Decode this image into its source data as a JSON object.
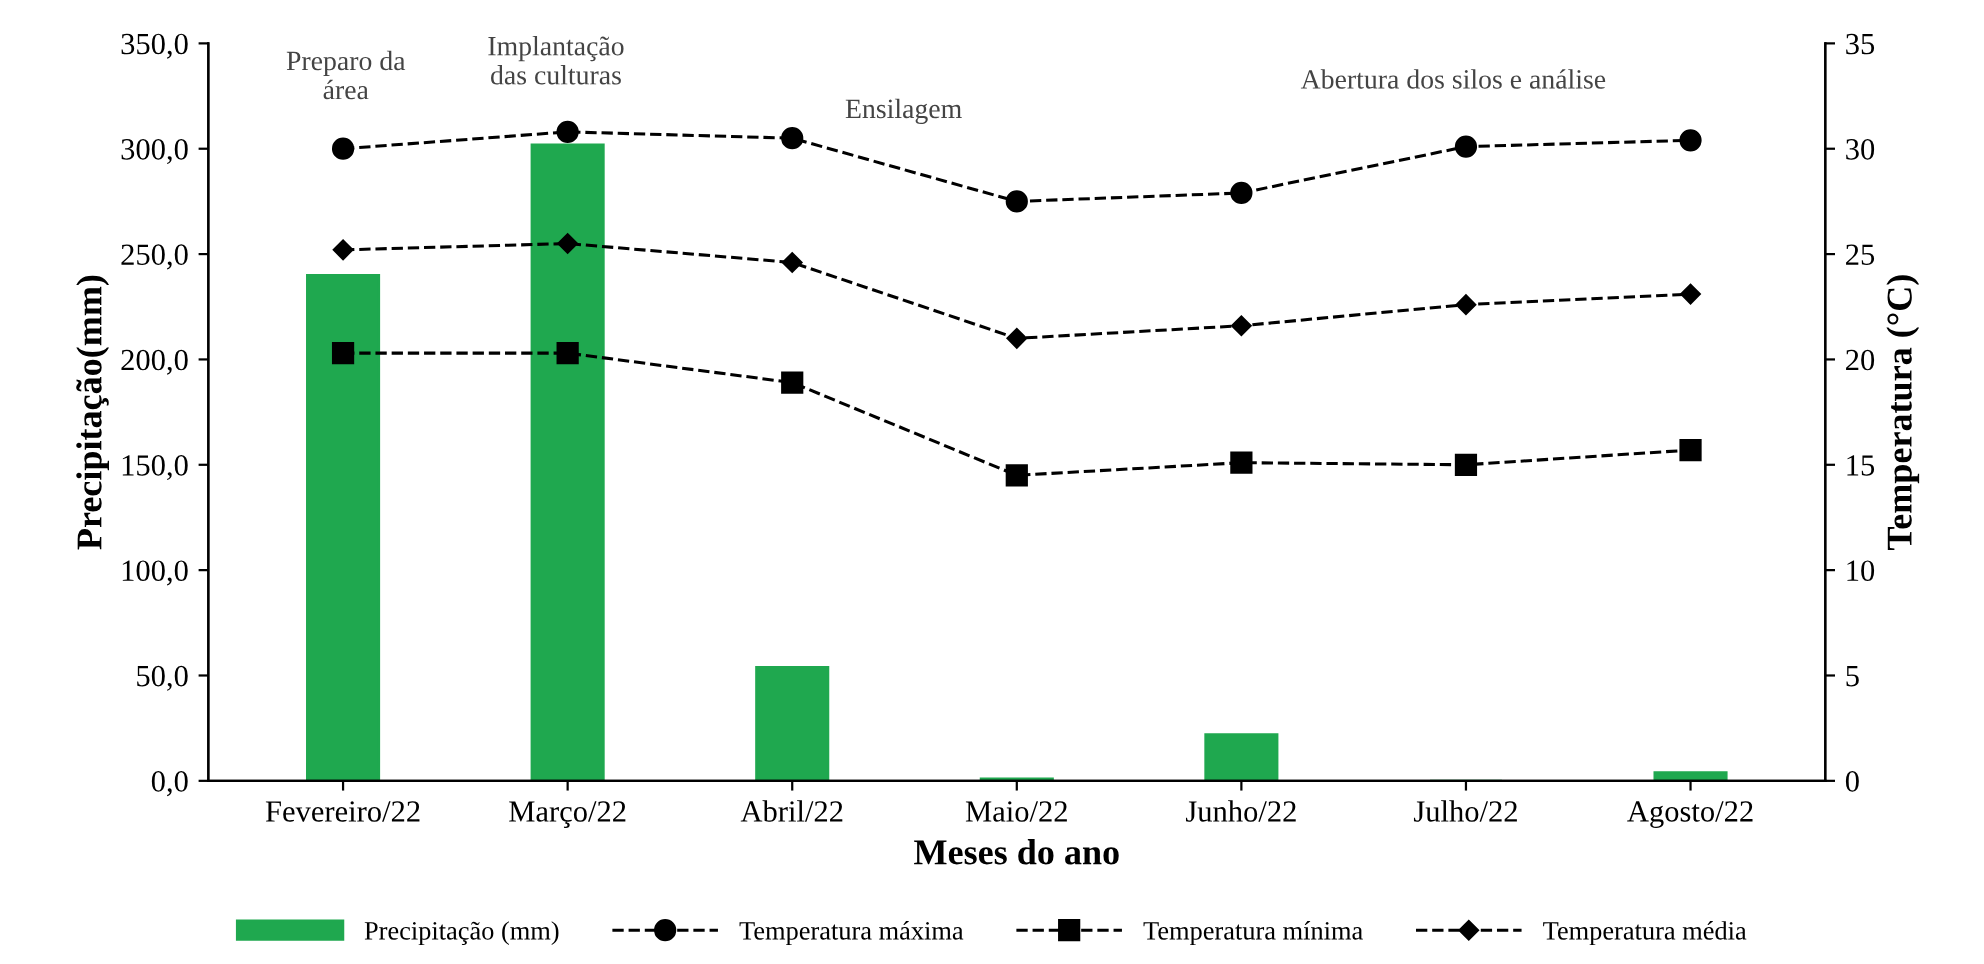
{
  "chart_data": {
    "type": "bar",
    "xlabel": "Meses do ano",
    "ylabel": "Precipitação(mm)",
    "y2label": "Temperatura (°C)",
    "categories": [
      "Fevereiro/22",
      "Março/22",
      "Abril/22",
      "Maio/22",
      "Junho/22",
      "Julho/22",
      "Agosto/22"
    ],
    "series": [
      {
        "name": "Precipitação (mm)",
        "color": "#1fa84f",
        "values": [
          240,
          302,
          54,
          1,
          22,
          0,
          4
        ]
      },
      {
        "name": "Temperatura máxima",
        "type": "line",
        "axis": "y2",
        "color": "#000000",
        "marker": "circle",
        "line_style": "dashed",
        "values": [
          30.0,
          30.8,
          30.5,
          27.5,
          27.9,
          30.1,
          30.4
        ]
      },
      {
        "name": "Temperatura mínima",
        "type": "line",
        "axis": "y2",
        "color": "#000000",
        "marker": "square",
        "line_style": "dashed",
        "values": [
          20.3,
          20.3,
          18.9,
          14.5,
          15.1,
          15.0,
          15.7
        ]
      },
      {
        "name": "Temperatura média",
        "type": "line",
        "axis": "y2",
        "color": "#000000",
        "marker": "diamond",
        "line_style": "dashed",
        "values": [
          25.2,
          25.5,
          24.6,
          21.0,
          21.6,
          22.6,
          23.1
        ]
      }
    ],
    "ylim": [
      0,
      350
    ],
    "yticks": [
      {
        "value": 0,
        "label": "0,0"
      },
      {
        "value": 50,
        "label": "50,0"
      },
      {
        "value": 100,
        "label": "100,0"
      },
      {
        "value": 150,
        "label": "150,0"
      },
      {
        "value": 200,
        "label": "200,0"
      },
      {
        "value": 250,
        "label": "250,0"
      },
      {
        "value": 300,
        "label": "300,0"
      },
      {
        "value": 350,
        "label": "350,0"
      }
    ],
    "y2lim": [
      0,
      35
    ],
    "y2ticks": [
      0,
      5,
      10,
      15,
      20,
      25,
      30,
      35
    ],
    "annotations": [
      "Preparo da\nárea",
      "Implantação\ndas culturas",
      "Ensilagem",
      "Abertura dos silos e análise"
    ],
    "legend": "bottom",
    "grid": false
  }
}
